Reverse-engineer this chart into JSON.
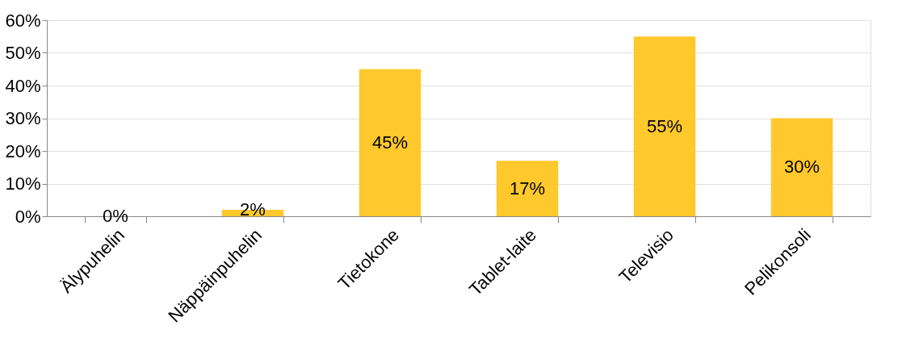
{
  "chart_data": {
    "type": "bar",
    "categories": [
      "Älypuhelin",
      "Näppäinpuhelin",
      "Tietokone",
      "Tablet-laite",
      "Televisio",
      "Pelikonsoli"
    ],
    "values": [
      0,
      2,
      45,
      17,
      55,
      30
    ],
    "value_labels": [
      "0%",
      "2%",
      "45%",
      "17%",
      "55%",
      "30%"
    ],
    "color": "#ffc82c",
    "ylim": [
      0,
      60
    ],
    "yticks": [
      {
        "value": 0,
        "label": "0%"
      },
      {
        "value": 10,
        "label": "10%"
      },
      {
        "value": 20,
        "label": "20%"
      },
      {
        "value": 30,
        "label": "30%"
      },
      {
        "value": 40,
        "label": "40%"
      },
      {
        "value": 50,
        "label": "50%"
      },
      {
        "value": 60,
        "label": "60%"
      }
    ],
    "grid": "y"
  }
}
